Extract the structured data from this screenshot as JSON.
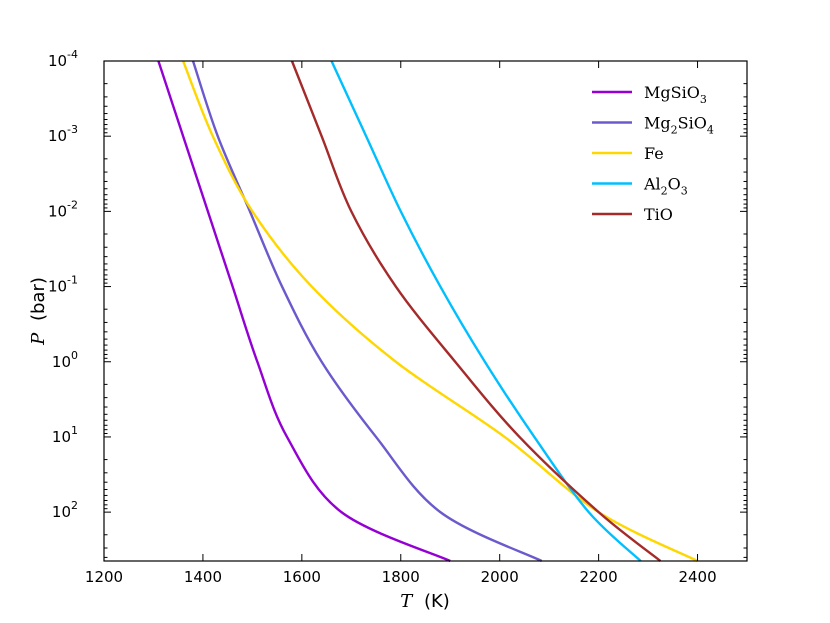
{
  "chart_data": {
    "type": "line",
    "xlabel_symbol": "T",
    "xlabel_unit": "(K)",
    "ylabel_symbol": "P",
    "ylabel_unit": "(bar)",
    "xlim": [
      1200,
      2500
    ],
    "ylim_log10": [
      -4,
      2.65
    ],
    "y_inverted": true,
    "y_scale": "log",
    "x_ticks": [
      1200,
      1400,
      1600,
      1800,
      2000,
      2200,
      2400
    ],
    "x_tick_labels": [
      "1200",
      "1400",
      "1600",
      "1800",
      "2000",
      "2200",
      "2400"
    ],
    "y_ticks": [
      {
        "base": "10",
        "exp": "-4",
        "log": -4
      },
      {
        "base": "10",
        "exp": "-3",
        "log": -3
      },
      {
        "base": "10",
        "exp": "-2",
        "log": -2
      },
      {
        "base": "10",
        "exp": "-1",
        "log": -1
      },
      {
        "base": "10",
        "exp": "0",
        "log": 0
      },
      {
        "base": "10",
        "exp": "1",
        "log": 1
      },
      {
        "base": "10",
        "exp": "2",
        "log": 2
      }
    ],
    "legend_position": "top-right",
    "series": [
      {
        "name": "MgSiO3",
        "label_main": "MgSiO",
        "label_sub": "3",
        "label_tail": "",
        "color": "#9400d3",
        "points": [
          [
            1310,
            -4
          ],
          [
            1360,
            -3
          ],
          [
            1410,
            -2
          ],
          [
            1460,
            -1
          ],
          [
            1510,
            0
          ],
          [
            1570,
            1
          ],
          [
            1680,
            2
          ],
          [
            1900,
            2.65
          ]
        ]
      },
      {
        "name": "Mg2SiO4",
        "label_main": "Mg",
        "label_sub": "2",
        "label_tail": "SiO",
        "label_sub2": "4",
        "color": "#6a5acd",
        "points": [
          [
            1380,
            -4
          ],
          [
            1430,
            -3
          ],
          [
            1495,
            -2
          ],
          [
            1560,
            -1
          ],
          [
            1640,
            0
          ],
          [
            1750,
            1
          ],
          [
            1880,
            2
          ],
          [
            2085,
            2.65
          ]
        ]
      },
      {
        "name": "Fe",
        "label_main": "Fe",
        "label_sub": "",
        "label_tail": "",
        "color": "#ffd700",
        "points": [
          [
            1360,
            -4
          ],
          [
            1420,
            -3
          ],
          [
            1500,
            -2
          ],
          [
            1620,
            -1
          ],
          [
            1790,
            0
          ],
          [
            2010,
            1
          ],
          [
            2200,
            2
          ],
          [
            2400,
            2.65
          ]
        ]
      },
      {
        "name": "Al2O3",
        "label_main": "Al",
        "label_sub": "2",
        "label_tail": "O",
        "label_sub2": "3",
        "color": "#00bfff",
        "points": [
          [
            1660,
            -4
          ],
          [
            1730,
            -3
          ],
          [
            1800,
            -2
          ],
          [
            1880,
            -1
          ],
          [
            1970,
            0
          ],
          [
            2070,
            1
          ],
          [
            2180,
            2
          ],
          [
            2285,
            2.65
          ]
        ]
      },
      {
        "name": "TiO",
        "label_main": "TiO",
        "label_sub": "",
        "label_tail": "",
        "color": "#a52a2a",
        "points": [
          [
            1580,
            -4
          ],
          [
            1640,
            -3
          ],
          [
            1700,
            -2
          ],
          [
            1790,
            -1
          ],
          [
            1910,
            0
          ],
          [
            2040,
            1
          ],
          [
            2200,
            2
          ],
          [
            2325,
            2.65
          ]
        ]
      }
    ]
  }
}
